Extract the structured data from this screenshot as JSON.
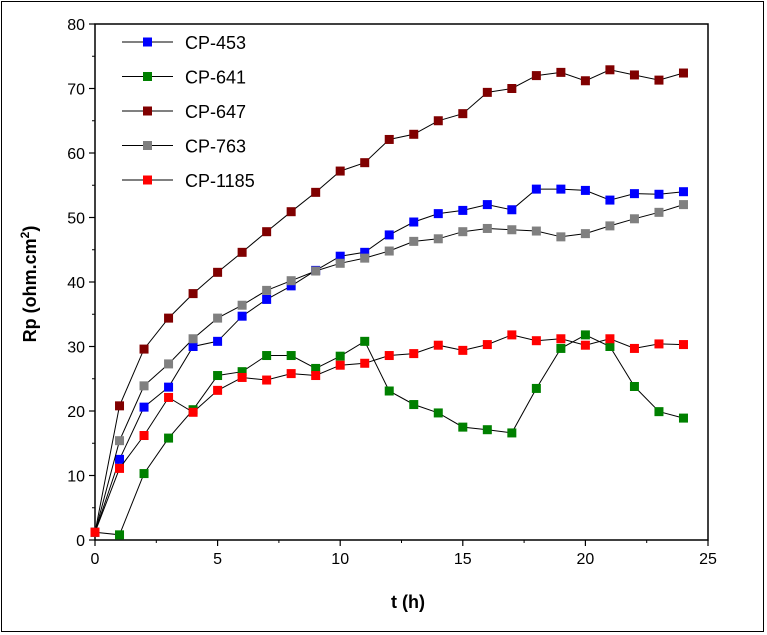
{
  "chart_data": {
    "type": "line",
    "xlabel": "t (h)",
    "ylabel": "Rp (ohm.cm",
    "ylabel_sup": "2",
    "ylabel_end": ")",
    "xlim": [
      0,
      25
    ],
    "ylim": [
      0,
      80
    ],
    "xticks": [
      "0",
      "5",
      "10",
      "15",
      "20",
      "25"
    ],
    "yticks": [
      "0",
      "10",
      "20",
      "30",
      "40",
      "50",
      "60",
      "70",
      "80"
    ],
    "grid": false,
    "legend_position": "top-left",
    "x": [
      0,
      1,
      2,
      3,
      4,
      5,
      6,
      7,
      8,
      9,
      10,
      11,
      12,
      13,
      14,
      15,
      16,
      17,
      18,
      19,
      20,
      21,
      22,
      23,
      24
    ],
    "series": [
      {
        "name": "CP-453",
        "color": "#0000ff",
        "values": [
          1.2,
          12.5,
          20.6,
          23.7,
          30.0,
          30.8,
          34.7,
          37.3,
          39.4,
          41.8,
          44.0,
          44.6,
          47.3,
          49.3,
          50.6,
          51.1,
          52.0,
          51.2,
          54.4,
          54.4,
          54.2,
          52.7,
          53.7,
          53.6,
          54.0
        ]
      },
      {
        "name": "CP-641",
        "color": "#008000",
        "values": [
          1.2,
          0.8,
          10.3,
          15.8,
          20.2,
          25.5,
          26.1,
          28.6,
          28.6,
          26.6,
          28.5,
          30.8,
          23.1,
          21.0,
          19.7,
          17.5,
          17.1,
          16.6,
          23.5,
          29.7,
          31.8,
          30.0,
          23.8,
          19.9,
          18.9
        ]
      },
      {
        "name": "CP-647",
        "color": "#800000",
        "values": [
          1.2,
          20.8,
          29.6,
          34.4,
          38.2,
          41.5,
          44.6,
          47.8,
          50.9,
          53.9,
          57.2,
          58.5,
          62.1,
          62.9,
          65.0,
          66.1,
          69.4,
          70.0,
          72.0,
          72.5,
          71.2,
          72.9,
          72.1,
          71.3,
          72.4
        ]
      },
      {
        "name": "CP-763",
        "color": "#808080",
        "values": [
          1.2,
          15.4,
          23.9,
          27.3,
          31.2,
          34.4,
          36.4,
          38.7,
          40.2,
          41.7,
          42.9,
          43.7,
          44.8,
          46.3,
          46.7,
          47.8,
          48.3,
          48.1,
          47.9,
          47.0,
          47.5,
          48.7,
          49.8,
          50.8,
          52.0
        ]
      },
      {
        "name": "CP-1185",
        "color": "#ff0000",
        "values": [
          1.2,
          11.1,
          16.2,
          22.1,
          19.8,
          23.2,
          25.2,
          24.8,
          25.8,
          25.5,
          27.1,
          27.4,
          28.6,
          28.9,
          30.2,
          29.4,
          30.3,
          31.8,
          30.9,
          31.2,
          30.2,
          31.2,
          29.7,
          30.4,
          30.3
        ]
      }
    ]
  }
}
